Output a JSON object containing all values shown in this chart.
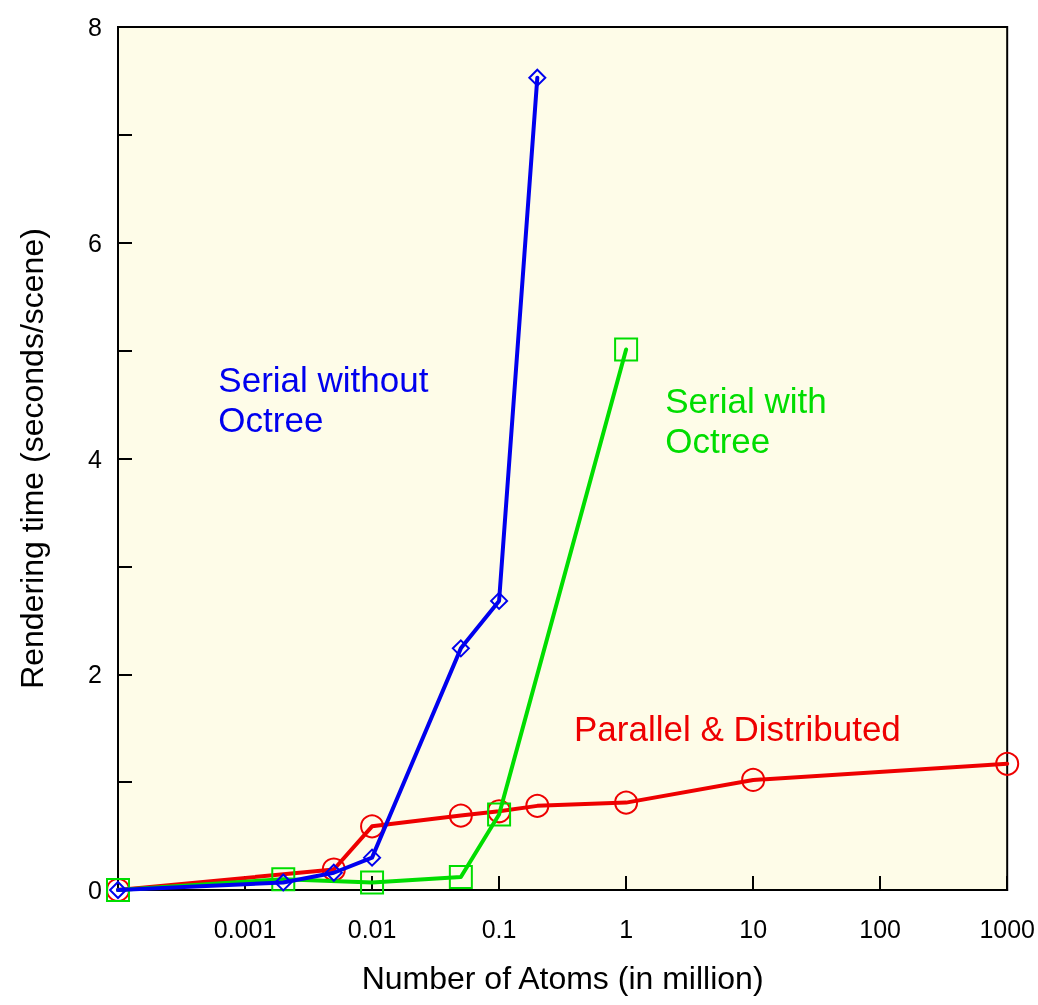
{
  "chart_data": {
    "type": "line",
    "xlabel": "Number of Atoms (in million)",
    "ylabel": "Rendering time (seconds/scene)",
    "log": "x",
    "grid": false,
    "legend": false,
    "line_style": "solid",
    "xlim": [
      0.0001,
      1000
    ],
    "xticks": [
      {
        "value": 0.0001,
        "label": null
      },
      0.001,
      0.01,
      0.1,
      1,
      10,
      100,
      1000
    ],
    "ylim": [
      0,
      8
    ],
    "yticks": [
      0,
      {
        "value": 1,
        "label": null
      },
      2,
      {
        "value": 3,
        "label": null
      },
      4,
      {
        "value": 5,
        "label": null
      },
      6,
      {
        "value": 7,
        "label": null
      },
      8
    ],
    "series": [
      {
        "name": "Serial without Octree",
        "color": "#0000ee",
        "marker": "diamond",
        "x": [
          0.0001,
          0.002,
          0.005,
          0.01,
          0.05,
          0.1,
          0.2
        ],
        "values": [
          0,
          0.07,
          0.16,
          0.3,
          2.24,
          2.68,
          7.53
        ]
      },
      {
        "name": "Serial with Octree",
        "color": "#00dd00",
        "marker": "square",
        "x": [
          0.0001,
          0.002,
          0.01,
          0.05,
          0.1,
          1
        ],
        "values": [
          0,
          0.1,
          0.07,
          0.12,
          0.7,
          5.01
        ]
      },
      {
        "name": "Parallel & Distributed",
        "color": "#ee0000",
        "marker": "circle",
        "x": [
          0.0001,
          0.005,
          0.01,
          0.05,
          0.1,
          0.2,
          1,
          10,
          1000
        ],
        "values": [
          0,
          0.19,
          0.59,
          0.69,
          0.73,
          0.78,
          0.81,
          1.02,
          1.17
        ]
      }
    ]
  }
}
